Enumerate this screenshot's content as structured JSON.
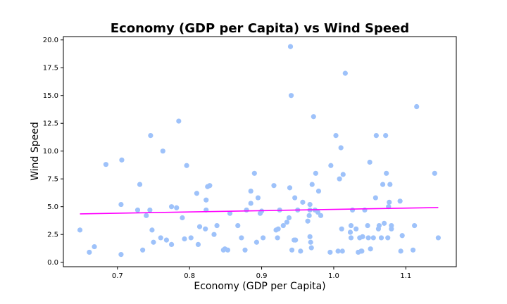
{
  "chart_data": {
    "type": "scatter",
    "title": "Economy (GDP per Capita) vs Wind Speed",
    "xlabel": "Economy (GDP per Capita)",
    "ylabel": "Wind Speed",
    "xlim": [
      0.625,
      1.17
    ],
    "ylim": [
      -0.4,
      20.3
    ],
    "xticks": [
      0.7,
      0.8,
      0.9,
      1.0,
      1.1
    ],
    "xtick_labels": [
      "0.7",
      "0.8",
      "0.9",
      "1.0",
      "1.1"
    ],
    "yticks": [
      0,
      2.5,
      5,
      7.5,
      10,
      12.5,
      15,
      17.5,
      20
    ],
    "ytick_labels": [
      "0.0",
      "2.5",
      "5.0",
      "7.5",
      "10.0",
      "12.5",
      "15.0",
      "17.5",
      "20.0"
    ],
    "grid": false,
    "colors": {
      "points": "#9ec2fa",
      "trend": "#ff00ff"
    },
    "series": [
      {
        "kind": "points",
        "x": [
          0.648,
          0.661,
          0.668,
          0.684,
          0.705,
          0.705,
          0.706,
          0.728,
          0.731,
          0.735,
          0.74,
          0.745,
          0.746,
          0.748,
          0.75,
          0.76,
          0.763,
          0.768,
          0.775,
          0.775,
          0.782,
          0.785,
          0.79,
          0.793,
          0.796,
          0.802,
          0.81,
          0.812,
          0.814,
          0.822,
          0.823,
          0.823,
          0.825,
          0.828,
          0.834,
          0.838,
          0.847,
          0.849,
          0.853,
          0.856,
          0.867,
          0.872,
          0.877,
          0.879,
          0.885,
          0.885,
          0.89,
          0.893,
          0.895,
          0.898,
          0.9,
          0.902,
          0.917,
          0.92,
          0.922,
          0.923,
          0.925,
          0.93,
          0.935,
          0.938,
          0.939,
          0.94,
          0.941,
          0.942,
          0.945,
          0.946,
          0.947,
          0.95,
          0.954,
          0.957,
          0.964,
          0.966,
          0.967,
          0.967,
          0.967,
          0.968,
          0.969,
          0.97,
          0.972,
          0.974,
          0.975,
          0.978,
          0.979,
          0.982,
          0.995,
          0.996,
          1.003,
          1.006,
          1.008,
          1.01,
          1.011,
          1.012,
          1.013,
          1.016,
          1.023,
          1.024,
          1.024,
          1.026,
          1.031,
          1.034,
          1.036,
          1.038,
          1.039,
          1.04,
          1.043,
          1.047,
          1.048,
          1.05,
          1.051,
          1.055,
          1.058,
          1.059,
          1.062,
          1.063,
          1.066,
          1.068,
          1.07,
          1.072,
          1.073,
          1.075,
          1.076,
          1.077,
          1.078,
          1.08,
          1.08,
          1.092,
          1.093,
          1.095,
          1.11,
          1.112,
          1.115,
          1.14,
          1.145
        ],
        "y": [
          2.9,
          0.9,
          1.4,
          8.8,
          0.7,
          5.2,
          9.2,
          4.7,
          7.0,
          1.1,
          4.2,
          4.7,
          11.4,
          2.9,
          1.8,
          2.2,
          10.0,
          2.0,
          1.6,
          5.0,
          4.9,
          12.7,
          4.0,
          2.1,
          8.7,
          2.2,
          6.2,
          1.6,
          3.2,
          3.0,
          4.7,
          5.6,
          6.8,
          6.9,
          2.5,
          3.3,
          1.1,
          1.2,
          1.1,
          4.4,
          3.3,
          2.2,
          1.1,
          4.7,
          5.3,
          6.4,
          8.0,
          1.8,
          5.8,
          4.4,
          4.6,
          2.2,
          6.9,
          2.9,
          2.2,
          3.0,
          4.7,
          3.3,
          3.6,
          4.0,
          6.7,
          19.4,
          15.0,
          1.1,
          2.0,
          5.8,
          2.0,
          4.7,
          1.0,
          5.4,
          3.7,
          4.2,
          5.2,
          4.7,
          2.3,
          1.8,
          1.3,
          7.0,
          13.1,
          4.7,
          8.0,
          4.5,
          6.4,
          4.2,
          0.9,
          8.7,
          11.4,
          1.0,
          7.5,
          10.3,
          3.0,
          1.0,
          7.9,
          17.0,
          2.7,
          3.3,
          2.2,
          4.7,
          3.0,
          0.9,
          2.2,
          1.0,
          1.0,
          2.3,
          4.7,
          3.3,
          2.2,
          9.0,
          1.2,
          2.2,
          5.8,
          11.4,
          3.0,
          3.3,
          2.2,
          7.0,
          3.5,
          11.4,
          8.0,
          2.2,
          5.0,
          5.4,
          7.0,
          3.0,
          3.3,
          5.5,
          1.0,
          2.4,
          1.1,
          3.3,
          14.0,
          8.0,
          2.2
        ]
      },
      {
        "kind": "trend",
        "x": [
          0.648,
          1.145
        ],
        "y": [
          4.35,
          4.92
        ]
      }
    ]
  }
}
